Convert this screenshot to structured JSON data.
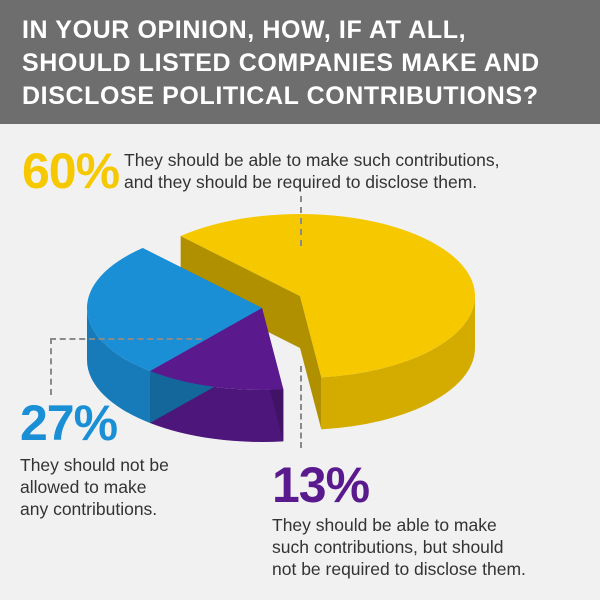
{
  "header": {
    "title": "IN YOUR OPINION, HOW, IF AT ALL, SHOULD LISTED COMPANIES MAKE AND DISCLOSE POLITICAL CONTRIBUTIONS?"
  },
  "colors": {
    "header_bg": "#6e6e6e",
    "yes_disclose": "#f6c800",
    "not_allowed": "#1a8fd6",
    "no_disclose": "#5a1a8e"
  },
  "labels": {
    "yes_disclose": {
      "pct": "60%",
      "line1": "They should be able to make such contributions,",
      "line2": "and they should be required to disclose them."
    },
    "not_allowed": {
      "pct": "27%",
      "line1": "They should not be",
      "line2": "allowed to make",
      "line3": "any contributions."
    },
    "no_disclose": {
      "pct": "13%",
      "line1": "They should be able to make",
      "line2": "such contributions, but should",
      "line3": "not be required to disclose them."
    }
  },
  "chart_data": {
    "type": "pie",
    "title": "IN YOUR OPINION, HOW, IF AT ALL, SHOULD LISTED COMPANIES MAKE AND DISCLOSE POLITICAL CONTRIBUTIONS?",
    "categories": [
      "They should be able to make such contributions, and they should be required to disclose them.",
      "They should be able to make such contributions, but should not be required to disclose them.",
      "They should not be allowed to make any contributions."
    ],
    "values": [
      60,
      13,
      27
    ],
    "colors": [
      "#f6c800",
      "#5a1a8e",
      "#1a8fd6"
    ],
    "exploded": [
      false,
      true,
      true
    ]
  }
}
